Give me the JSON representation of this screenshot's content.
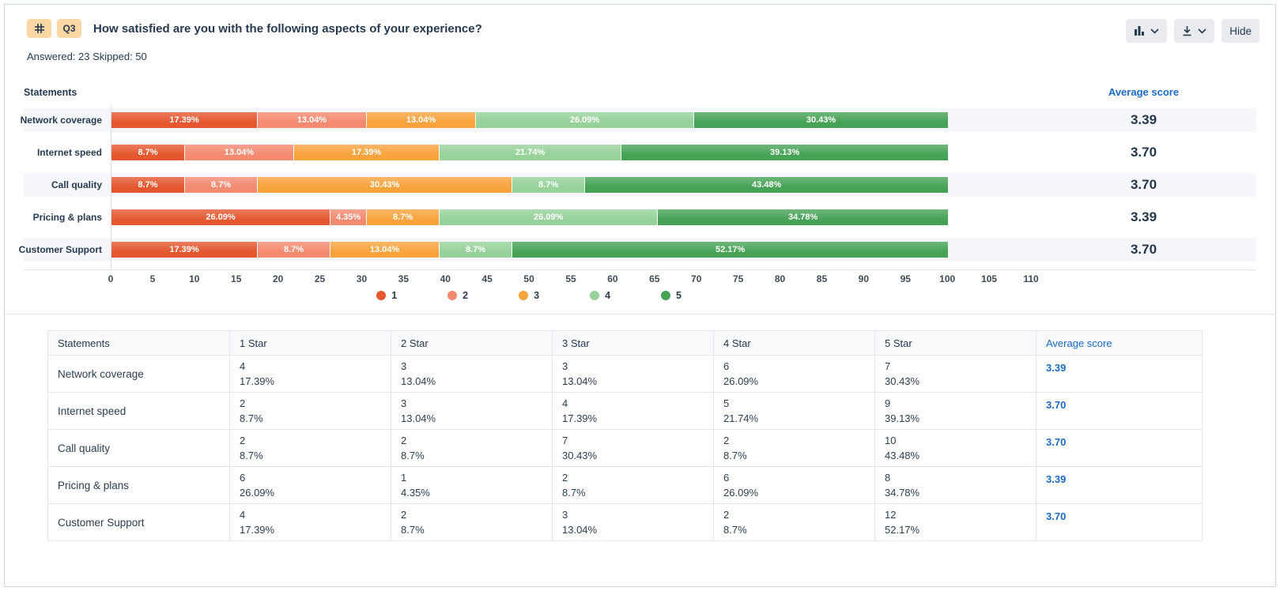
{
  "header": {
    "question_number": "Q3",
    "title": "How satisfied are you with the following aspects of your experience?",
    "answered_skipped": "Answered: 23 Skipped: 50",
    "hide_label": "Hide",
    "icons": {
      "matrix_icon": "grid-hash",
      "chart_type_icon": "bar-chart",
      "export_icon": "download",
      "chevron_icon": "chevron-down"
    }
  },
  "chart": {
    "type": "bar",
    "statements_label": "Statements",
    "average_score_label": "Average score",
    "axis_max": 110,
    "axis_ticks": [
      0,
      5,
      10,
      15,
      20,
      25,
      30,
      35,
      40,
      45,
      50,
      55,
      60,
      65,
      70,
      75,
      80,
      85,
      90,
      95,
      100,
      105,
      110
    ],
    "legend": [
      {
        "label": "1",
        "color": "#e4572f"
      },
      {
        "label": "2",
        "color": "#f48a70"
      },
      {
        "label": "3",
        "color": "#f9a33d"
      },
      {
        "label": "4",
        "color": "#96d29a"
      },
      {
        "label": "5",
        "color": "#46a356"
      }
    ],
    "rows": [
      {
        "label": "Network coverage",
        "average": "3.39",
        "segments": [
          {
            "value": 17.39,
            "label": "17.39%"
          },
          {
            "value": 13.04,
            "label": "13.04%"
          },
          {
            "value": 13.04,
            "label": "13.04%"
          },
          {
            "value": 26.09,
            "label": "26.09%"
          },
          {
            "value": 30.43,
            "label": "30.43%"
          }
        ]
      },
      {
        "label": "Internet speed",
        "average": "3.70",
        "segments": [
          {
            "value": 8.7,
            "label": "8.7%"
          },
          {
            "value": 13.04,
            "label": "13.04%"
          },
          {
            "value": 17.39,
            "label": "17.39%"
          },
          {
            "value": 21.74,
            "label": "21.74%"
          },
          {
            "value": 39.13,
            "label": "39.13%"
          }
        ]
      },
      {
        "label": "Call quality",
        "average": "3.70",
        "segments": [
          {
            "value": 8.7,
            "label": "8.7%"
          },
          {
            "value": 8.7,
            "label": "8.7%"
          },
          {
            "value": 30.43,
            "label": "30.43%"
          },
          {
            "value": 8.7,
            "label": "8.7%"
          },
          {
            "value": 43.48,
            "label": "43.48%"
          }
        ]
      },
      {
        "label": "Pricing & plans",
        "average": "3.39",
        "segments": [
          {
            "value": 26.09,
            "label": "26.09%"
          },
          {
            "value": 4.35,
            "label": "4.35%"
          },
          {
            "value": 8.7,
            "label": "8.7%"
          },
          {
            "value": 26.09,
            "label": "26.09%"
          },
          {
            "value": 34.78,
            "label": "34.78%"
          }
        ]
      },
      {
        "label": "Customer Support",
        "average": "3.70",
        "segments": [
          {
            "value": 17.39,
            "label": "17.39%"
          },
          {
            "value": 8.7,
            "label": "8.7%"
          },
          {
            "value": 13.04,
            "label": "13.04%"
          },
          {
            "value": 8.7,
            "label": "8.7%"
          },
          {
            "value": 52.17,
            "label": "52.17%"
          }
        ]
      }
    ]
  },
  "table": {
    "headers": [
      "Statements",
      "1 Star",
      "2 Star",
      "3 Star",
      "4 Star",
      "5 Star",
      "Average score"
    ],
    "rows": [
      {
        "statement": "Network coverage",
        "average": "3.39",
        "cells": [
          {
            "count": "4",
            "pct": "17.39%"
          },
          {
            "count": "3",
            "pct": "13.04%"
          },
          {
            "count": "3",
            "pct": "13.04%"
          },
          {
            "count": "6",
            "pct": "26.09%"
          },
          {
            "count": "7",
            "pct": "30.43%"
          }
        ]
      },
      {
        "statement": "Internet speed",
        "average": "3.70",
        "cells": [
          {
            "count": "2",
            "pct": "8.7%"
          },
          {
            "count": "3",
            "pct": "13.04%"
          },
          {
            "count": "4",
            "pct": "17.39%"
          },
          {
            "count": "5",
            "pct": "21.74%"
          },
          {
            "count": "9",
            "pct": "39.13%"
          }
        ]
      },
      {
        "statement": "Call quality",
        "average": "3.70",
        "cells": [
          {
            "count": "2",
            "pct": "8.7%"
          },
          {
            "count": "2",
            "pct": "8.7%"
          },
          {
            "count": "7",
            "pct": "30.43%"
          },
          {
            "count": "2",
            "pct": "8.7%"
          },
          {
            "count": "10",
            "pct": "43.48%"
          }
        ]
      },
      {
        "statement": "Pricing & plans",
        "average": "3.39",
        "cells": [
          {
            "count": "6",
            "pct": "26.09%"
          },
          {
            "count": "1",
            "pct": "4.35%"
          },
          {
            "count": "2",
            "pct": "8.7%"
          },
          {
            "count": "6",
            "pct": "26.09%"
          },
          {
            "count": "8",
            "pct": "34.78%"
          }
        ]
      },
      {
        "statement": "Customer Support",
        "average": "3.70",
        "cells": [
          {
            "count": "4",
            "pct": "17.39%"
          },
          {
            "count": "2",
            "pct": "8.7%"
          },
          {
            "count": "3",
            "pct": "13.04%"
          },
          {
            "count": "2",
            "pct": "8.7%"
          },
          {
            "count": "12",
            "pct": "52.17%"
          }
        ]
      }
    ]
  },
  "colors": {
    "accent_blue": "#1b6ac9",
    "text_dark": "#263b52",
    "badge_bg": "#fbd8a3",
    "button_bg": "#e9ebef",
    "band_gray": "#f5f6f9",
    "border_light": "#e3e7ec",
    "card_border": "#cdd9e5",
    "rating_1": "#e4572f",
    "rating_2": "#f48a70",
    "rating_3": "#f9a33d",
    "rating_4": "#96d29a",
    "rating_5": "#46a356"
  }
}
